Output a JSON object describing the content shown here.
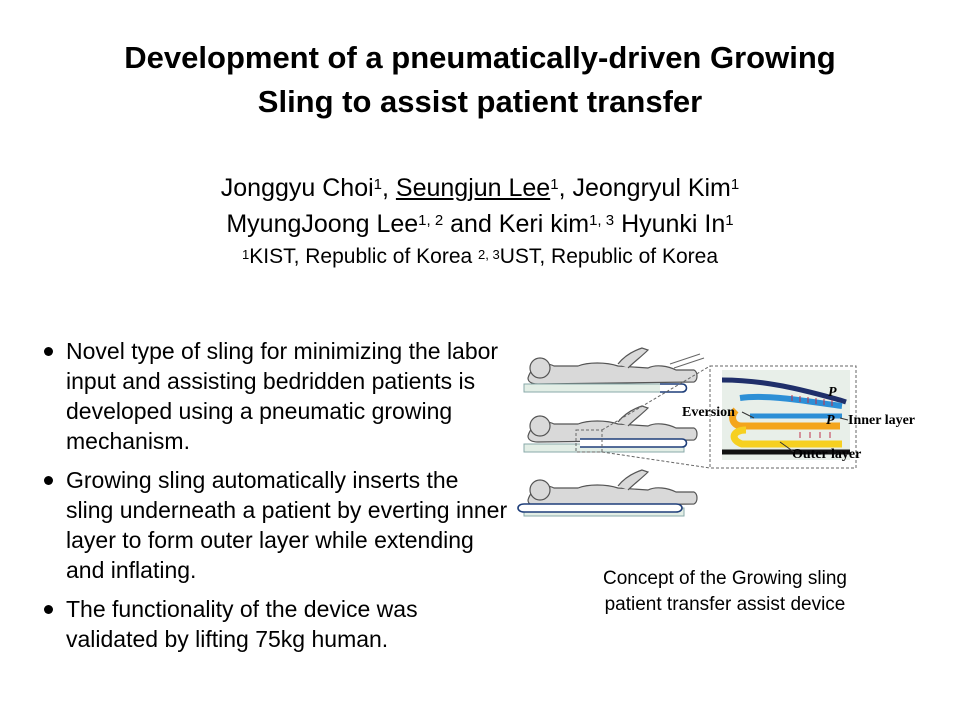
{
  "title": {
    "line1": "Development of a pneumatically-driven Growing",
    "line2": "Sling to assist patient transfer"
  },
  "authors": {
    "a1": "Jonggyu Choi",
    "a1_sup": "1",
    "sep1": ", ",
    "a2": "Seungjun Lee",
    "a2_sup": "1",
    "sep2": ", ",
    "a3": "Jeongryul Kim",
    "a3_sup": "1",
    "a4": "MyungJoong Lee",
    "a4_sup": "1, 2",
    "and": " and ",
    "a5": "Keri kim",
    "a5_sup": "1, 3",
    "a6": " Hyunki In",
    "a6_sup": "1"
  },
  "affiliations": {
    "sup1": "1",
    "text1": "KIST, Republic of Korea ",
    "sup2": "2, 3",
    "text2": "UST, Republic of Korea"
  },
  "bullets": [
    "Novel type of sling for minimizing the labor input and assisting bedridden patients is developed using a pneumatic growing mechanism.",
    "Growing sling automatically inserts the sling underneath a patient by everting inner layer to form outer layer while extending and inflating.",
    "The functionality of the device was validated by lifting 75kg human."
  ],
  "figure": {
    "label_eversion": "Eversion",
    "label_inner": "Inner layer",
    "label_outer": "Outer layer",
    "label_p1": "P",
    "label_p2": "P"
  },
  "caption": "Concept of the Growing sling patient transfer assist device"
}
